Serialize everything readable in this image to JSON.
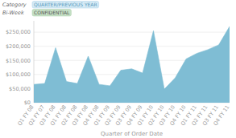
{
  "chart_data": {
    "type": "area",
    "annotations": [
      "Category",
      "QUARTER/PREVIOUS YEAR",
      "Bi-Week",
      "CONFIDENTIAL"
    ],
    "x_label": "Quarter of Order Date",
    "categories": [
      "Q1 FY 08",
      "Q2 FY 07",
      "Q3 FY 08",
      "Q1 FY 08",
      "Q2 FY 08",
      "Q3 FY 08",
      "Q4 FY 08",
      "Q1 FY 09",
      "Q2 FY 09",
      "Q3 FY 09",
      "Q4 FY 09",
      "Q1 FY 10",
      "Q2 FY 10",
      "Q3 FY 10",
      "Q4 FY 10",
      "Q1 FY 11",
      "Q2 FY 11",
      "Q3 FY 11",
      "Q4 FY 11"
    ],
    "values": [
      65000,
      68000,
      195000,
      75000,
      68000,
      165000,
      65000,
      60000,
      115000,
      120000,
      105000,
      255000,
      48000,
      88000,
      155000,
      175000,
      188000,
      205000,
      270000
    ],
    "color": "#7fbdd4",
    "ylim": [
      0,
      290000
    ],
    "yticks": [
      {
        "value": 0,
        "label": "$0"
      },
      {
        "value": 50000,
        "label": "$50,000"
      },
      {
        "value": 100000,
        "label": "$100,000"
      },
      {
        "value": 150000,
        "label": "$150,000"
      },
      {
        "value": 200000,
        "label": "$200,000"
      },
      {
        "value": 250000,
        "label": "$250,000"
      }
    ],
    "grid": true
  }
}
